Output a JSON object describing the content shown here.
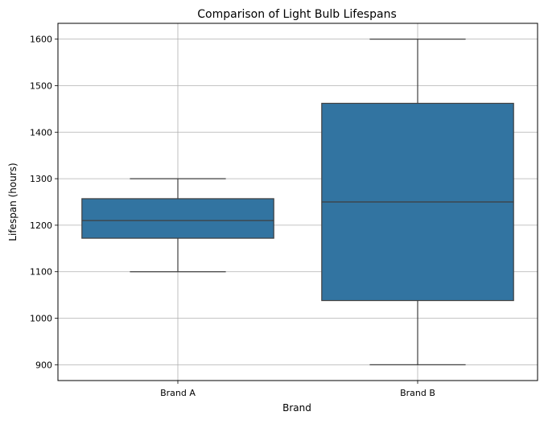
{
  "chart_data": {
    "type": "box",
    "title": "Comparison of Light Bulb Lifespans",
    "xlabel": "Brand",
    "ylabel": "Lifespan (hours)",
    "categories": [
      "Brand A",
      "Brand B"
    ],
    "boxes": [
      {
        "category": "Brand A",
        "whisker_low": 1100,
        "q1": 1172,
        "median": 1210,
        "q3": 1257,
        "whisker_high": 1300
      },
      {
        "category": "Brand B",
        "whisker_low": 900,
        "q1": 1038,
        "median": 1250,
        "q3": 1462,
        "whisker_high": 1600
      }
    ],
    "yticks": [
      900,
      1000,
      1100,
      1200,
      1300,
      1400,
      1500,
      1600
    ],
    "ylim": [
      866,
      1634
    ],
    "grid": true,
    "box_color": "#3274a1",
    "line_color": "#3f3f3f"
  }
}
